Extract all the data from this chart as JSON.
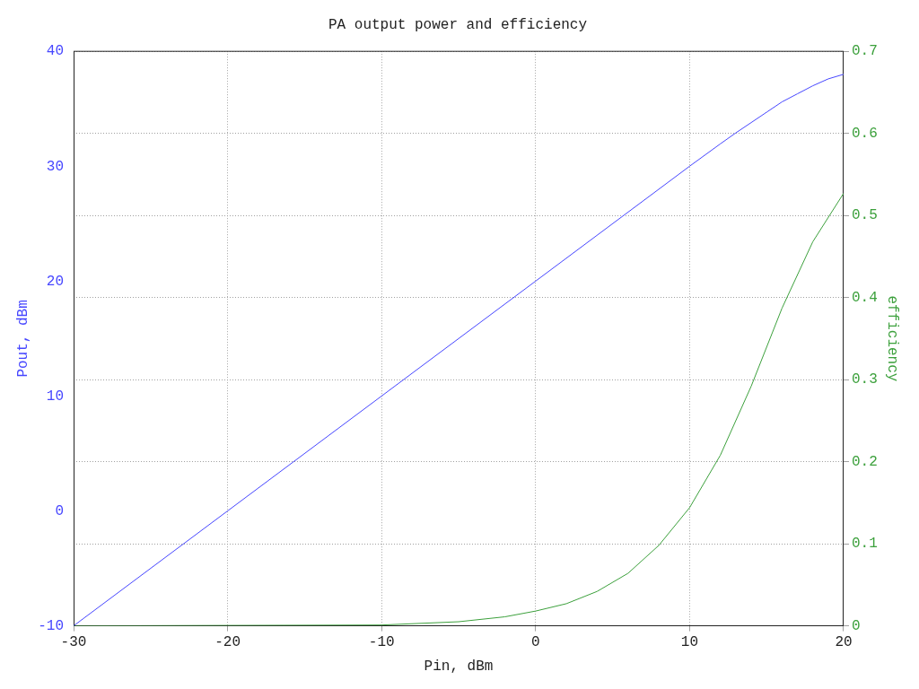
{
  "chart_data": {
    "type": "line",
    "title": "PA output power and efficiency",
    "xlabel": "Pin, dBm",
    "ylabel": "Pout, dBm",
    "y2label": "efficiency",
    "series": [
      {
        "name": null,
        "color": "#4646ff",
        "x": [
          -30,
          -20,
          -10,
          0,
          10,
          12,
          13,
          14,
          15,
          16,
          17,
          18,
          19,
          20
        ],
        "values": [
          -10,
          0,
          10,
          20,
          30,
          31.95,
          32.9,
          33.8,
          34.7,
          35.6,
          36.3,
          37.0,
          37.6,
          38.0
        ]
      },
      {
        "name": null,
        "color": "#3ca03c",
        "axis": "y2",
        "x": [
          -30,
          -10,
          -5,
          -2,
          0,
          2,
          4,
          6,
          8,
          10,
          12,
          14,
          16,
          18,
          20
        ],
        "values": [
          0,
          0.001,
          0.005,
          0.011,
          0.018,
          0.027,
          0.042,
          0.064,
          0.098,
          0.144,
          0.208,
          0.292,
          0.387,
          0.468,
          0.527
        ]
      }
    ],
    "xlim": [
      -30,
      20
    ],
    "xticks": [
      -30,
      -20,
      -10,
      0,
      10,
      20
    ],
    "ylim": [
      -10,
      40
    ],
    "yticks": [
      -10,
      0,
      10,
      20,
      30,
      40
    ],
    "y2lim": [
      0,
      0.7
    ],
    "y2ticks": [
      0,
      0.1,
      0.2,
      0.3,
      0.4,
      0.5,
      0.6,
      0.7
    ],
    "grid": true,
    "legend": false,
    "marker": "none",
    "line_style": "solid"
  }
}
